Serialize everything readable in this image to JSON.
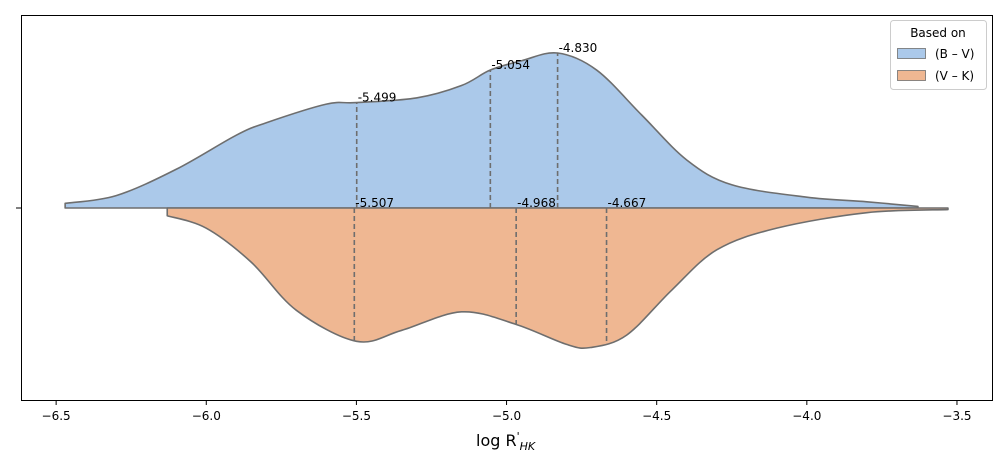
{
  "chart_data": {
    "type": "violin",
    "split": true,
    "xlabel": "log R'HK",
    "xlabel_main": "log R",
    "xlabel_sub": "HK",
    "xlabel_sup": "'",
    "ytick_label": "",
    "xlim": [
      -6.617,
      -3.38
    ],
    "xticks": [
      -6.5,
      -6.0,
      -5.5,
      -5.0,
      -4.5,
      -4.0,
      -3.5
    ],
    "xtick_labels": [
      "−6.5",
      "−6.0",
      "−5.5",
      "−5.0",
      "−4.5",
      "−4.0",
      "−3.5"
    ],
    "legend": {
      "title": "Based on",
      "placement": "top-right"
    },
    "series": [
      {
        "name": "(B – V)",
        "side": "upper",
        "color": "#abc9ea",
        "density": [
          [
            -6.47,
            0.03
          ],
          [
            -6.3,
            0.08
          ],
          [
            -6.1,
            0.25
          ],
          [
            -5.9,
            0.47
          ],
          [
            -5.8,
            0.55
          ],
          [
            -5.6,
            0.67
          ],
          [
            -5.5,
            0.68
          ],
          [
            -5.3,
            0.71
          ],
          [
            -5.15,
            0.79
          ],
          [
            -5.054,
            0.89
          ],
          [
            -4.95,
            0.95
          ],
          [
            -4.83,
            1.0
          ],
          [
            -4.7,
            0.89
          ],
          [
            -4.55,
            0.6
          ],
          [
            -4.4,
            0.31
          ],
          [
            -4.25,
            0.15
          ],
          [
            -4.0,
            0.07
          ],
          [
            -3.8,
            0.04
          ],
          [
            -3.63,
            0.01
          ]
        ],
        "quartiles": [
          -5.499,
          -5.054,
          -4.83
        ],
        "quartile_labels": [
          "-5.499",
          "-5.054",
          "-4.830"
        ]
      },
      {
        "name": "(V – K)",
        "side": "lower",
        "color": "#efb792",
        "density": [
          [
            -6.13,
            0.05
          ],
          [
            -6.0,
            0.13
          ],
          [
            -5.85,
            0.35
          ],
          [
            -5.7,
            0.66
          ],
          [
            -5.5,
            0.86
          ],
          [
            -5.35,
            0.79
          ],
          [
            -5.15,
            0.67
          ],
          [
            -4.97,
            0.75
          ],
          [
            -4.8,
            0.88
          ],
          [
            -4.72,
            0.9
          ],
          [
            -4.6,
            0.82
          ],
          [
            -4.45,
            0.53
          ],
          [
            -4.3,
            0.27
          ],
          [
            -4.1,
            0.13
          ],
          [
            -3.8,
            0.03
          ],
          [
            -3.53,
            0.01
          ]
        ],
        "quartiles": [
          -5.507,
          -4.968,
          -4.667
        ],
        "quartile_labels": [
          "-5.507",
          "-4.968",
          "-4.667"
        ]
      }
    ],
    "edge_color": "#6e6e6e"
  }
}
